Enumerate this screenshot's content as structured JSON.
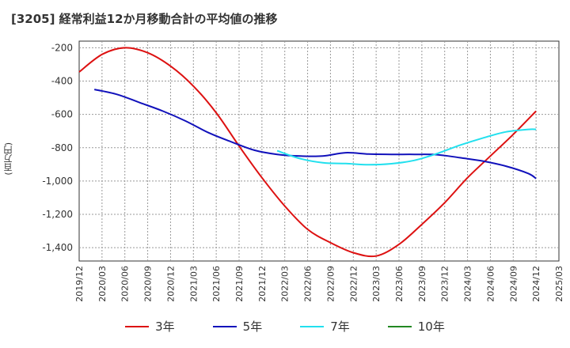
{
  "chart_data": {
    "type": "line",
    "title": "[3205]  経常利益12か月移動合計の平均値の推移",
    "ylabel": "(百万円)",
    "xlabel": "",
    "ylim": [
      -1480,
      -160
    ],
    "yticks": [
      -200,
      -400,
      -600,
      -800,
      -1000,
      -1200,
      -1400
    ],
    "ytick_labels": [
      "-200",
      "-400",
      "-600",
      "-800",
      "-1,000",
      "-1,200",
      "-1,400"
    ],
    "xlim": [
      "2019-12",
      "2025-03"
    ],
    "xticks": [
      "2019/12",
      "2020/03",
      "2020/06",
      "2020/09",
      "2020/12",
      "2021/03",
      "2021/06",
      "2021/09",
      "2021/12",
      "2022/03",
      "2022/06",
      "2022/09",
      "2022/12",
      "2023/03",
      "2023/06",
      "2023/09",
      "2023/12",
      "2024/03",
      "2024/06",
      "2024/09",
      "2024/12",
      "2025/03"
    ],
    "grid": true,
    "legend_position": "bottom",
    "series": [
      {
        "name": "3年",
        "color": "#dd1111",
        "x": [
          "2019-12",
          "2020-03",
          "2020-06",
          "2020-09",
          "2020-12",
          "2021-03",
          "2021-06",
          "2021-09",
          "2021-12",
          "2022-03",
          "2022-06",
          "2022-09",
          "2022-12",
          "2023-03",
          "2023-06",
          "2023-09",
          "2023-12",
          "2024-03",
          "2024-06",
          "2024-09",
          "2024-12"
        ],
        "values": [
          -345,
          -240,
          -200,
          -230,
          -310,
          -430,
          -590,
          -790,
          -980,
          -1150,
          -1290,
          -1370,
          -1430,
          -1450,
          -1380,
          -1260,
          -1130,
          -980,
          -850,
          -720,
          -580
        ]
      },
      {
        "name": "5年",
        "color": "#1111bb",
        "x": [
          "2020-02",
          "2020-05",
          "2020-08",
          "2020-11",
          "2021-02",
          "2021-05",
          "2021-08",
          "2021-11",
          "2022-02",
          "2022-05",
          "2022-08",
          "2022-11",
          "2023-02",
          "2023-05",
          "2023-08",
          "2023-11",
          "2024-02",
          "2024-05",
          "2024-08",
          "2024-11",
          "2024-12"
        ],
        "values": [
          -450,
          -480,
          -530,
          -580,
          -640,
          -710,
          -765,
          -815,
          -840,
          -850,
          -850,
          -830,
          -838,
          -840,
          -840,
          -842,
          -860,
          -880,
          -910,
          -955,
          -985
        ]
      },
      {
        "name": "7年",
        "color": "#22e0ee",
        "x": [
          "2022-02",
          "2022-05",
          "2022-08",
          "2022-11",
          "2023-02",
          "2023-05",
          "2023-08",
          "2023-11",
          "2024-02",
          "2024-05",
          "2024-08",
          "2024-11",
          "2024-12"
        ],
        "values": [
          -818,
          -865,
          -890,
          -895,
          -902,
          -896,
          -876,
          -835,
          -785,
          -742,
          -705,
          -690,
          -690
        ]
      },
      {
        "name": "10年",
        "color": "#228822",
        "x": [],
        "values": []
      }
    ]
  }
}
